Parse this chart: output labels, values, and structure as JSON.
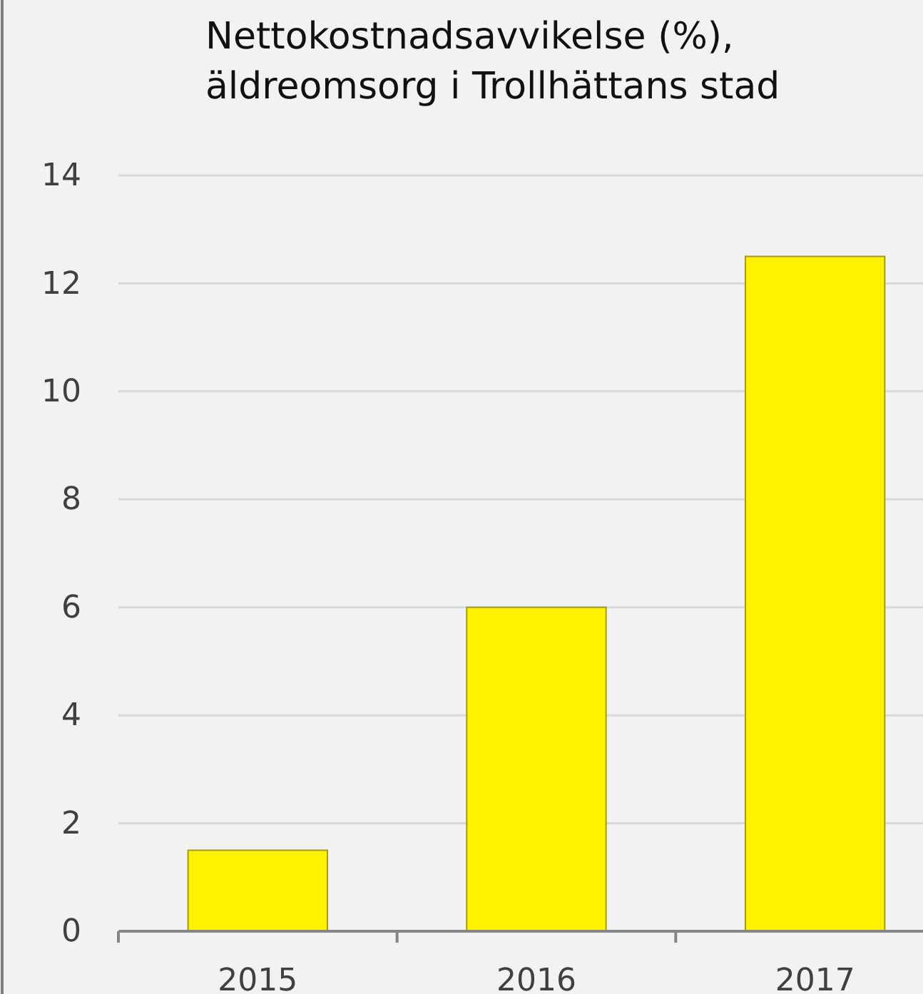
{
  "chart_data": {
    "type": "bar",
    "title": "Nettokostnadsavvikelse (%),\näldreomsorg i Trollhättans stad",
    "categories": [
      "2015",
      "2016",
      "2017"
    ],
    "values": [
      1.5,
      6.0,
      12.5
    ],
    "color": "#fff200",
    "ylim": [
      0,
      14
    ],
    "yticks": [
      0,
      2,
      4,
      6,
      8,
      10,
      12,
      14
    ],
    "grid": "y"
  }
}
